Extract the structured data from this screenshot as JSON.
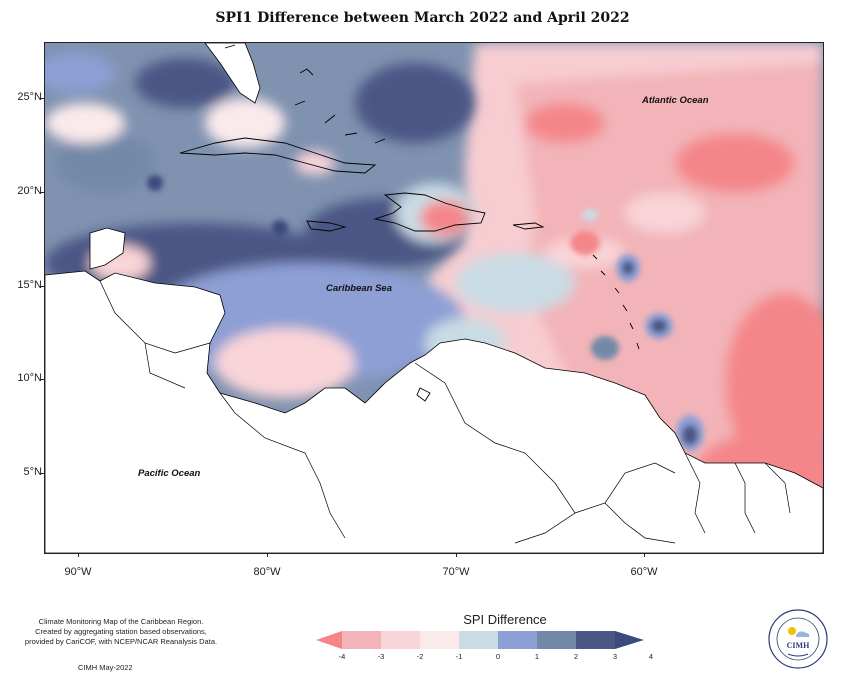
{
  "title": "SPI1 Difference between March 2022 and April 2022",
  "map": {
    "lat_labels": [
      "25°N",
      "20°N",
      "15°N",
      "10°N",
      "5°N"
    ],
    "lon_labels": [
      "90°W",
      "80°W",
      "70°W",
      "60°W"
    ],
    "ocean_labels": {
      "atlantic": "Atlantic Ocean",
      "caribbean": "Caribbean Sea",
      "pacific": "Pacific Ocean"
    }
  },
  "legend": {
    "title": "SPI Difference",
    "ticks": [
      "-4",
      "-3",
      "-2",
      "-1",
      "0",
      "1",
      "2",
      "3",
      "4"
    ],
    "colors": {
      "lt_m3": "#f4868a",
      "m3_m2": "#f2b4b8",
      "m2_m1": "#f9d4d8",
      "m1_0": "#fbeaec",
      "0_1": "#c9dbe4",
      "1_2": "#8d9fd4",
      "2_3": "#7389a8",
      "gt_3": "#4c5685"
    }
  },
  "credit": {
    "line1": "Climate Monitoring Map of the Caribbean Region.",
    "line2": "Created by aggregating station based observations,",
    "line3": "provided by CariCOF, with NCEP/NCAR Reanalysis Data.",
    "date": "CIMH May-2022"
  },
  "logo": {
    "text": "CIMH",
    "ring_text": "Caribbean Institute for Meteorology and Hydrology",
    "icon": "cimh-logo-icon"
  }
}
